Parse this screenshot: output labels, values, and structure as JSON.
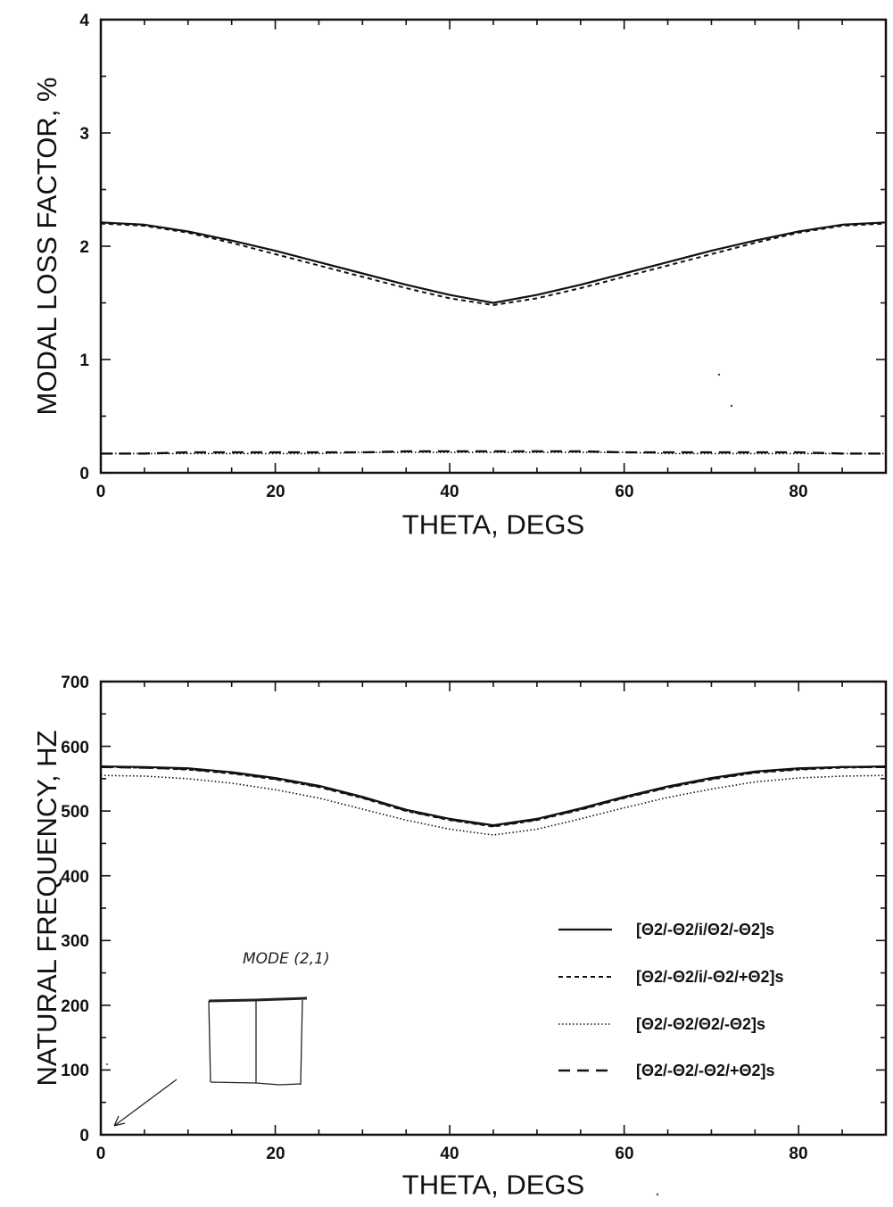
{
  "chart_data": [
    {
      "type": "line",
      "title": "",
      "xlabel": "THETA, DEGS",
      "ylabel": "MODAL LOSS FACTOR, %",
      "xlim": [
        0,
        90
      ],
      "ylim": [
        0,
        4
      ],
      "xticks": [
        "0",
        "20",
        "40",
        "60",
        "80"
      ],
      "yticks": [
        "0",
        "1",
        "2",
        "3",
        "4"
      ],
      "grid": false,
      "x": [
        0,
        5,
        10,
        15,
        20,
        25,
        30,
        35,
        40,
        45,
        50,
        55,
        60,
        65,
        70,
        75,
        80,
        85,
        90
      ],
      "series": [
        {
          "style": "solid",
          "values": [
            2.21,
            2.19,
            2.13,
            2.05,
            1.96,
            1.86,
            1.76,
            1.66,
            1.57,
            1.5,
            1.57,
            1.66,
            1.76,
            1.86,
            1.96,
            2.05,
            2.13,
            2.19,
            2.21
          ]
        },
        {
          "style": "dashed",
          "values": [
            2.2,
            2.18,
            2.12,
            2.03,
            1.93,
            1.83,
            1.73,
            1.63,
            1.54,
            1.48,
            1.54,
            1.63,
            1.73,
            1.83,
            1.93,
            2.03,
            2.12,
            2.18,
            2.2
          ]
        },
        {
          "style": "dotted",
          "values": [
            0.17,
            0.17,
            0.17,
            0.17,
            0.17,
            0.17,
            0.18,
            0.18,
            0.18,
            0.18,
            0.18,
            0.18,
            0.18,
            0.17,
            0.17,
            0.17,
            0.17,
            0.17,
            0.17
          ]
        },
        {
          "style": "longdash",
          "values": [
            0.17,
            0.17,
            0.18,
            0.18,
            0.18,
            0.18,
            0.18,
            0.19,
            0.19,
            0.19,
            0.19,
            0.19,
            0.18,
            0.18,
            0.18,
            0.18,
            0.18,
            0.17,
            0.17
          ]
        }
      ]
    },
    {
      "type": "line",
      "title": "",
      "xlabel": "THETA, DEGS",
      "ylabel": "NATURAL FREQUENCY, HZ",
      "xlim": [
        0,
        90
      ],
      "ylim": [
        0,
        700
      ],
      "xticks": [
        "0",
        "20",
        "40",
        "60",
        "80"
      ],
      "yticks": [
        "0",
        "100",
        "200",
        "300",
        "400",
        "500",
        "600",
        "700"
      ],
      "grid": false,
      "legend": "center-right",
      "annotation": "MODE (2,1)",
      "x": [
        0,
        5,
        10,
        15,
        20,
        25,
        30,
        35,
        40,
        45,
        50,
        55,
        60,
        65,
        70,
        75,
        80,
        85,
        90
      ],
      "series": [
        {
          "name": "[Θ2/-Θ2/i/Θ2/-Θ2]s",
          "style": "solid",
          "values": [
            569,
            568,
            566,
            560,
            551,
            539,
            522,
            502,
            488,
            478,
            488,
            504,
            522,
            538,
            551,
            561,
            566,
            568,
            569
          ]
        },
        {
          "name": "[Θ2/-Θ2/i/-Θ2/+Θ2]s",
          "style": "dashed",
          "values": [
            568,
            567,
            564,
            558,
            549,
            537,
            520,
            500,
            486,
            476,
            486,
            502,
            520,
            536,
            549,
            559,
            564,
            567,
            568
          ]
        },
        {
          "name": "[Θ2/-Θ2/Θ2/-Θ2]s",
          "style": "dotted",
          "values": [
            555,
            554,
            550,
            543,
            533,
            520,
            503,
            486,
            472,
            463,
            472,
            488,
            505,
            521,
            534,
            545,
            551,
            554,
            555
          ]
        },
        {
          "name": "[Θ2/-Θ2/-Θ2/+Θ2]s",
          "style": "longdash",
          "values": [
            568,
            567,
            565,
            559,
            550,
            538,
            521,
            501,
            487,
            477,
            487,
            503,
            521,
            537,
            550,
            560,
            565,
            568,
            568
          ]
        }
      ]
    }
  ]
}
